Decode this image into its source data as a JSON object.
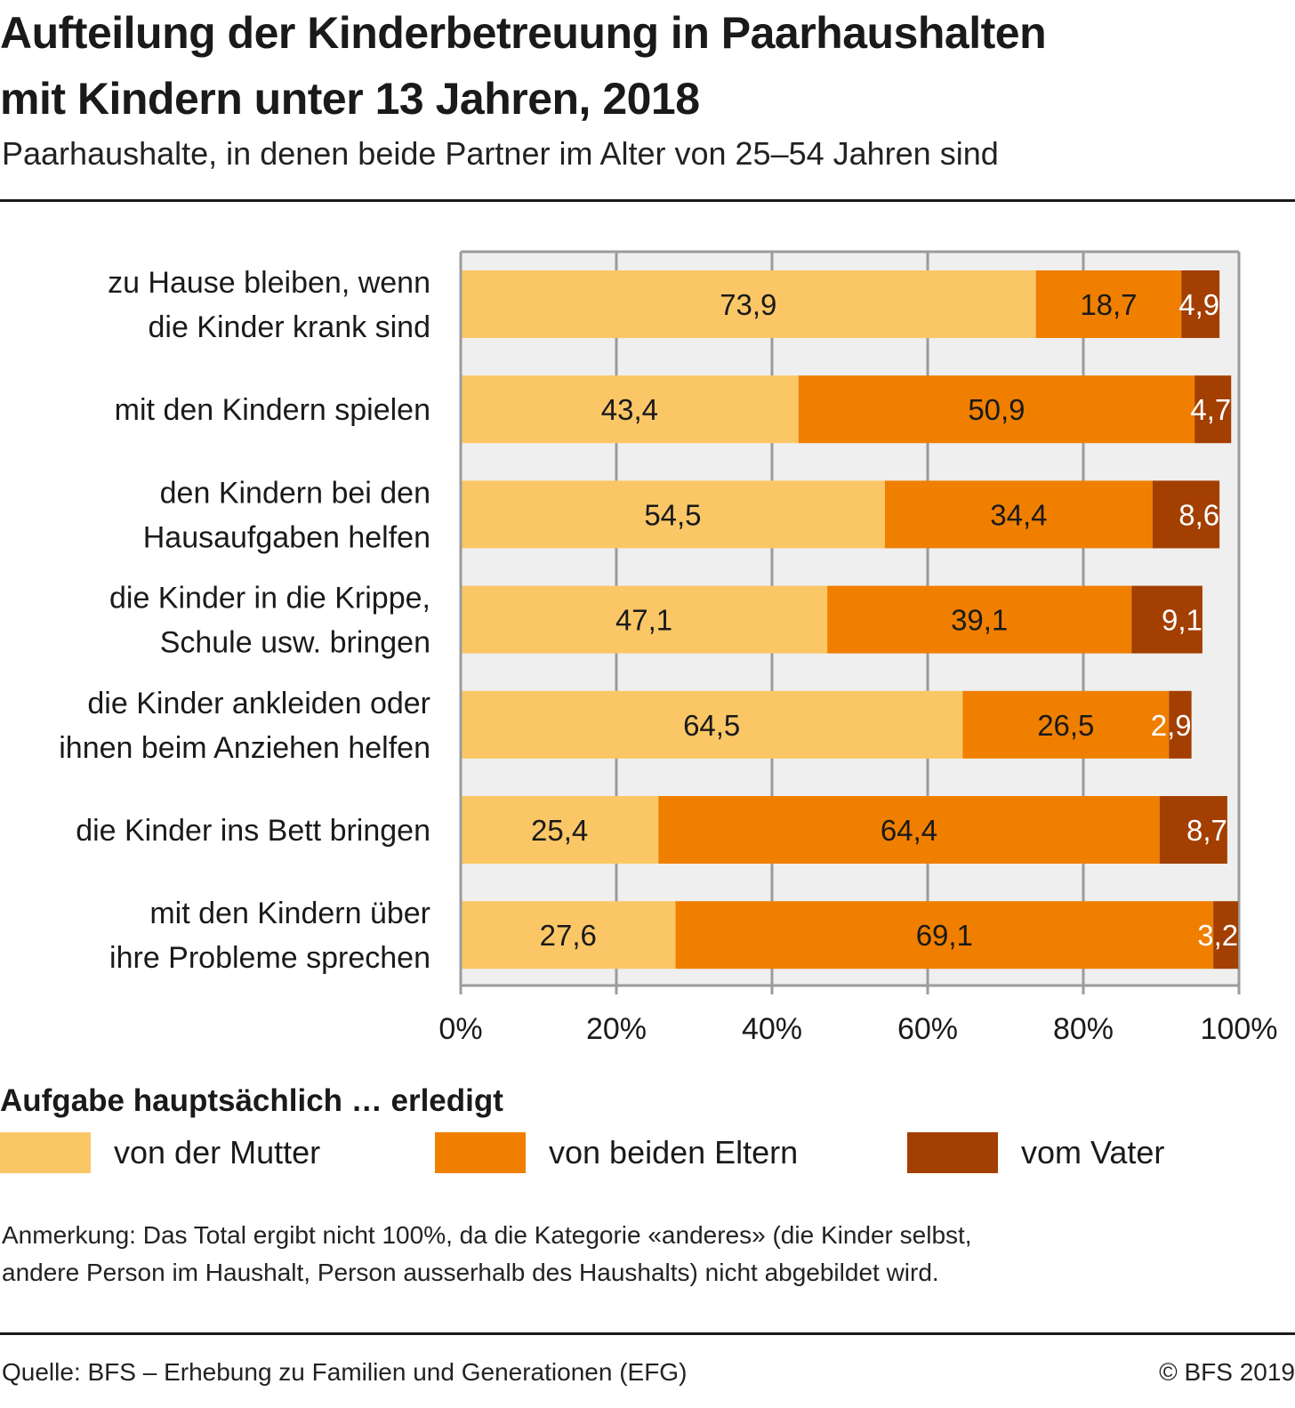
{
  "header": {
    "title_line1": "Aufteilung der Kinderbetreuung in Paarhaushalten",
    "title_line2": "mit Kindern unter 13 Jahren, 2018",
    "subtitle": "Paarhaushalte, in denen beide Partner im Alter von 25–54 Jahren sind"
  },
  "chart_data": {
    "type": "bar",
    "orientation": "horizontal",
    "stacked": true,
    "title": "Aufteilung der Kinderbetreuung in Paarhaushalten mit Kindern unter 13 Jahren, 2018",
    "subtitle": "Paarhaushalte, in denen beide Partner im Alter von 25–54 Jahren sind",
    "categories": [
      [
        "zu Hause bleiben, wenn",
        "die Kinder krank sind"
      ],
      [
        "mit den Kindern spielen"
      ],
      [
        "den Kindern bei den",
        "Hausaufgaben helfen"
      ],
      [
        "die Kinder in die Krippe,",
        "Schule usw. bringen"
      ],
      [
        "die Kinder ankleiden oder",
        "ihnen beim Anziehen helfen"
      ],
      [
        "die Kinder ins Bett bringen"
      ],
      [
        "mit den Kindern über",
        "ihre Probleme sprechen"
      ]
    ],
    "series": [
      {
        "name": "von der Mutter",
        "color": "#fbc766",
        "label_color": "#1a1a1a",
        "values": [
          73.9,
          43.4,
          54.5,
          47.1,
          64.5,
          25.4,
          27.6
        ],
        "labels": [
          "73,9",
          "43,4",
          "54,5",
          "47,1",
          "64,5",
          "25,4",
          "27,6"
        ]
      },
      {
        "name": "von beiden Eltern",
        "color": "#f07f00",
        "label_color": "#1a1a1a",
        "values": [
          18.7,
          50.9,
          34.4,
          39.1,
          26.5,
          64.4,
          69.1
        ],
        "labels": [
          "18,7",
          "50,9",
          "34,4",
          "39,1",
          "26,5",
          "64,4",
          "69,1"
        ]
      },
      {
        "name": "vom Vater",
        "color": "#a33f00",
        "label_color": "#ffffff",
        "values": [
          4.9,
          4.7,
          8.6,
          9.1,
          2.9,
          8.7,
          3.2
        ],
        "labels": [
          "4,9",
          "4,7",
          "8,6",
          "9,1",
          "2,9",
          "8,7",
          "3,2"
        ]
      }
    ],
    "xlim": [
      0,
      100
    ],
    "xticks": [
      0,
      20,
      40,
      60,
      80,
      100
    ],
    "xtick_labels": [
      "0%",
      "20%",
      "40%",
      "60%",
      "80%",
      "100%"
    ],
    "xlabel": "",
    "ylabel": "",
    "grid": true,
    "plot_background": "#efefef",
    "legend_title": "Aufgabe hauptsächlich … erledigt",
    "legend_position": "bottom"
  },
  "legend": {
    "title": "Aufgabe hauptsächlich … erledigt",
    "items": [
      {
        "label": "von der Mutter",
        "color": "#fbc766"
      },
      {
        "label": "von beiden Eltern",
        "color": "#f07f00"
      },
      {
        "label": "vom Vater",
        "color": "#a33f00"
      }
    ]
  },
  "footer": {
    "note_line1": "Anmerkung: Das Total ergibt nicht 100%, da die Kategorie «anderes» (die Kinder selbst,",
    "note_line2": "andere Person im Haushalt, Person ausserhalb des Haushalts) nicht abgebildet wird.",
    "source": "Quelle: BFS – Erhebung zu Familien und Generationen (EFG)",
    "copyright": "© BFS 2019"
  }
}
